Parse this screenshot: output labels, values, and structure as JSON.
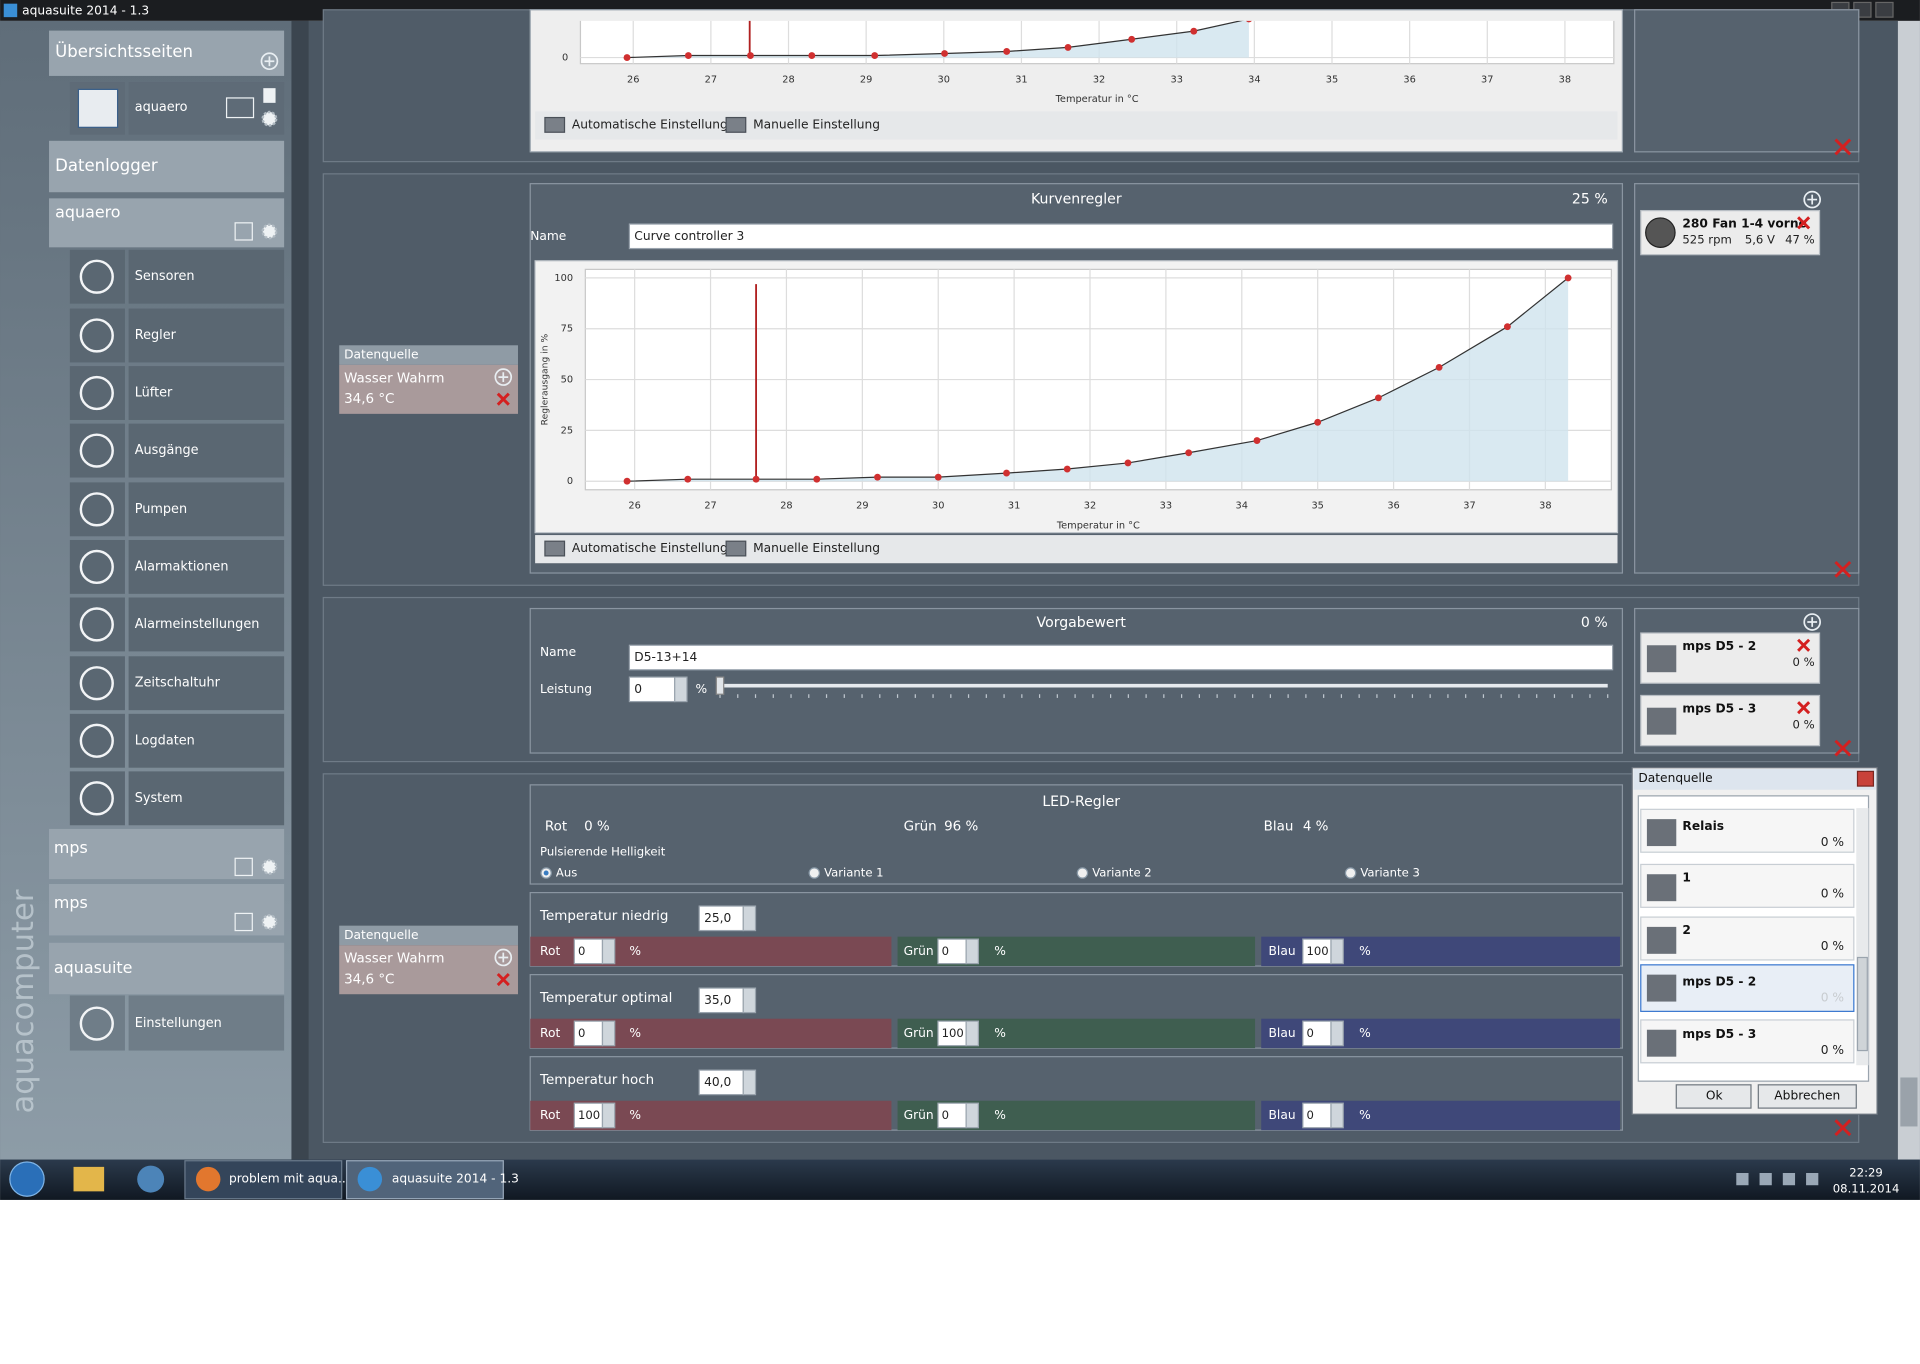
{
  "window": {
    "title": "aquasuite 2014 - 1.3"
  },
  "sidebar": {
    "overview": {
      "title": "Übersichtsseiten",
      "items": [
        "aquaero"
      ]
    },
    "datalogger": {
      "title": "Datenlogger"
    },
    "aquaero": {
      "title": "aquaero",
      "items": [
        "Sensoren",
        "Regler",
        "Lüfter",
        "Ausgänge",
        "Pumpen",
        "Alarmaktionen",
        "Alarmeinstellungen",
        "Zeitschaltuhr",
        "Logdaten",
        "System"
      ]
    },
    "mps_1": {
      "title": "mps"
    },
    "mps_2": {
      "title": "mps"
    },
    "aquasuite": {
      "title": "aquasuite",
      "items": [
        "Einstellungen"
      ]
    },
    "brand": "aquacomputer"
  },
  "top_panel": {
    "chart": {
      "type": "line",
      "x_label": "Temperatur in °C",
      "x": [
        25.92,
        26.71,
        27.51,
        28.3,
        29.11,
        30.01,
        30.81,
        31.6,
        32.42,
        33.22,
        33.93
      ],
      "values": [
        0,
        1,
        1,
        1,
        1,
        2,
        3,
        5,
        9,
        13,
        19
      ],
      "xlim": [
        25.32,
        38.63
      ],
      "ylim": [
        -3,
        105
      ],
      "xticks": [
        26,
        27,
        28,
        29,
        30,
        31,
        32,
        33,
        34,
        35,
        36,
        37,
        38
      ],
      "yticks": [
        0
      ],
      "grid": true,
      "color": "#333333",
      "point_color": "#d03030",
      "marker_color": "#b02020",
      "fill_color": "#cfe4ee",
      "marker_x": 27.5
    },
    "buttons": [
      "Automatische Einstellung",
      "Manuelle Einstellung"
    ]
  },
  "curve_panel": {
    "source": {
      "label": "Datenquelle",
      "name": "Wasser Wahrm",
      "value": "34,6 °C"
    },
    "title": "Kurvenregler",
    "percent": "25 %",
    "name_label": "Name",
    "name": "Curve controller 3",
    "chart": {
      "type": "line",
      "x_label": "Temperatur in °C",
      "y_label": "Reglerausgang in %",
      "x": [
        25.9,
        26.7,
        27.6,
        28.4,
        29.2,
        30.0,
        30.9,
        31.7,
        32.5,
        33.3,
        34.2,
        35.0,
        35.8,
        36.6,
        37.5,
        38.3
      ],
      "values": [
        0,
        1,
        1,
        1,
        2,
        2,
        4,
        6,
        9,
        14,
        20,
        29,
        41,
        56,
        76,
        100
      ],
      "xlim": [
        25.35,
        38.87
      ],
      "ylim": [
        -4.2,
        104.2
      ],
      "xticks": [
        26,
        27,
        28,
        29,
        30,
        31,
        32,
        33,
        34,
        35,
        36,
        37,
        38
      ],
      "yticks": [
        0,
        25,
        50,
        75,
        100
      ],
      "grid": true,
      "color": "#333333",
      "point_color": "#d03030",
      "marker_color": "#b02020",
      "fill_color": "#cfe4ee",
      "marker_x": 27.6
    },
    "buttons": [
      "Automatische Einstellung",
      "Manuelle Einstellung"
    ],
    "outputs": [
      {
        "name": "280 Fan 1-4 vorne",
        "rpm": "525 rpm",
        "voltage": "5,6 V",
        "percent": "47 %"
      }
    ]
  },
  "preset_panel": {
    "title": "Vorgabewert",
    "percent": "0 %",
    "name_label": "Name",
    "name": "D5-13+14",
    "power_label": "Leistung",
    "power": "0",
    "unit": "%",
    "outputs": [
      {
        "name": "mps D5 - 2",
        "percent": "0 %"
      },
      {
        "name": "mps D5 - 3",
        "percent": "0 %"
      }
    ]
  },
  "led_panel": {
    "source": {
      "label": "Datenquelle",
      "name": "Wasser Wahrm",
      "value": "34,6 °C"
    },
    "title": "LED-Regler",
    "current": [
      {
        "label": "Rot",
        "value": "0 %"
      },
      {
        "label": "Grün",
        "value": "96 %"
      },
      {
        "label": "Blau",
        "value": "4 %"
      }
    ],
    "pulse_label": "Pulsierende Helligkeit",
    "pulse_options": [
      "Aus",
      "Variante 1",
      "Variante 2",
      "Variante 3"
    ],
    "rows": [
      {
        "label": "Temperatur niedrig",
        "temp": "25,0",
        "channels": [
          {
            "label": "Rot",
            "value": "0",
            "unit": "%"
          },
          {
            "label": "Grün",
            "value": "0",
            "unit": "%"
          },
          {
            "label": "Blau",
            "value": "100",
            "unit": "%"
          }
        ]
      },
      {
        "label": "Temperatur optimal",
        "temp": "35,0",
        "channels": [
          {
            "label": "Rot",
            "value": "0",
            "unit": "%"
          },
          {
            "label": "Grün",
            "value": "100",
            "unit": "%"
          },
          {
            "label": "Blau",
            "value": "0",
            "unit": "%"
          }
        ]
      },
      {
        "label": "Temperatur hoch",
        "temp": "40,0",
        "channels": [
          {
            "label": "Rot",
            "value": "100",
            "unit": "%"
          },
          {
            "label": "Grün",
            "value": "0",
            "unit": "%"
          },
          {
            "label": "Blau",
            "value": "0",
            "unit": "%"
          }
        ]
      }
    ]
  },
  "dialog": {
    "title": "Datenquelle",
    "items": [
      {
        "name": "Relais",
        "percent": "0 %"
      },
      {
        "name": "1",
        "percent": "0 %"
      },
      {
        "name": "2",
        "percent": "0 %"
      },
      {
        "name": "mps D5 - 2",
        "percent": "0 %"
      },
      {
        "name": "mps D5 - 3",
        "percent": "0 %"
      }
    ],
    "ok": "Ok",
    "cancel": "Abbrechen"
  },
  "taskbar": {
    "buttons": [
      "problem mit aqua...",
      "aquasuite 2014 - 1.3"
    ],
    "time": "22:29",
    "date": "08.11.2014"
  }
}
